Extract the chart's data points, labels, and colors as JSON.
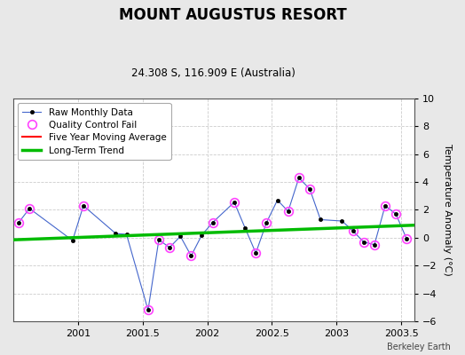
{
  "title": "MOUNT AUGUSTUS RESORT",
  "subtitle": "24.308 S, 116.909 E (Australia)",
  "ylabel": "Temperature Anomaly (°C)",
  "watermark": "Berkeley Earth",
  "xlim": [
    2000.5,
    2003.6
  ],
  "ylim": [
    -6,
    10
  ],
  "yticks": [
    -6,
    -4,
    -2,
    0,
    2,
    4,
    6,
    8,
    10
  ],
  "xticks": [
    2001.0,
    2001.5,
    2002.0,
    2002.5,
    2003.0,
    2003.5
  ],
  "xticklabels": [
    "2001",
    "2001.5",
    "2002",
    "2002.5",
    "2003",
    "2003.5"
  ],
  "raw_x": [
    2000.542,
    2000.625,
    2000.958,
    2001.042,
    2001.292,
    2001.375,
    2001.542,
    2001.625,
    2001.708,
    2001.792,
    2001.875,
    2001.958,
    2002.042,
    2002.208,
    2002.292,
    2002.375,
    2002.458,
    2002.542,
    2002.625,
    2002.708,
    2002.792,
    2002.875,
    2003.042,
    2003.125,
    2003.208,
    2003.292,
    2003.375,
    2003.458,
    2003.542
  ],
  "raw_y": [
    1.1,
    2.1,
    -0.2,
    2.3,
    0.3,
    0.25,
    -5.2,
    -0.15,
    -0.7,
    0.1,
    -1.3,
    0.2,
    1.1,
    2.55,
    0.7,
    -1.1,
    1.1,
    2.7,
    1.9,
    4.3,
    3.5,
    1.3,
    1.2,
    0.5,
    -0.3,
    -0.5,
    2.3,
    1.7,
    -0.1
  ],
  "qc_fail_x": [
    2000.542,
    2000.625,
    2001.042,
    2001.542,
    2001.625,
    2001.708,
    2001.875,
    2002.042,
    2002.208,
    2002.375,
    2002.458,
    2002.625,
    2002.708,
    2002.792,
    2003.125,
    2003.208,
    2003.292,
    2003.375,
    2003.458,
    2003.542
  ],
  "qc_fail_y": [
    1.1,
    2.1,
    2.3,
    -5.2,
    -0.15,
    -0.7,
    -1.3,
    1.1,
    2.55,
    -1.1,
    1.1,
    1.9,
    4.3,
    3.5,
    0.5,
    -0.3,
    -0.5,
    2.3,
    1.7,
    -0.1
  ],
  "trend_x": [
    2000.5,
    2003.6
  ],
  "trend_y": [
    -0.15,
    0.9
  ],
  "bg_color": "#e8e8e8",
  "plot_bg_color": "#ffffff",
  "raw_line_color": "#4466cc",
  "raw_marker_color": "#000000",
  "qc_marker_color": "#ff44ff",
  "moving_avg_color": "#ff0000",
  "trend_color": "#00bb00",
  "grid_color": "#cccccc",
  "grid_style": "--"
}
